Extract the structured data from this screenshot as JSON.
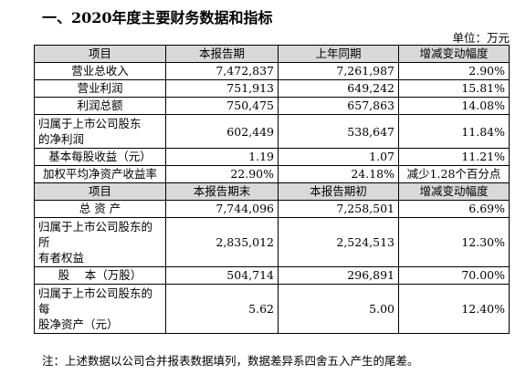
{
  "title": "一、2020年度主要财务数据和指标",
  "unit": "单位：万元",
  "table": {
    "col_widths": [
      144,
      123,
      132,
      121
    ],
    "header1": [
      "项目",
      "本报告期",
      "上年同期",
      "增减变动幅度"
    ],
    "rows1": [
      {
        "label": "营业总收入",
        "v1": "7,472,837",
        "v2": "7,261,987",
        "v3": "2.90%"
      },
      {
        "label": "营业利润",
        "v1": "751,913",
        "v2": "649,242",
        "v3": "15.81%"
      },
      {
        "label": "利润总额",
        "v1": "750,475",
        "v2": "657,863",
        "v3": "14.08%"
      },
      {
        "label": "归属于上市公司股东",
        "label2": "的净利润",
        "v1": "602,449",
        "v2": "538,647",
        "v3": "11.84%"
      },
      {
        "label": "基本每股收益（元）",
        "v1": "1.19",
        "v2": "1.07",
        "v3": "11.21%"
      },
      {
        "label": "加权平均净资产收益率",
        "v1": "22.90%",
        "v2": "24.18%",
        "v3": "减少1.28个百分点"
      }
    ],
    "header2": [
      "项目",
      "本报告期末",
      "本报告期初",
      "增减变动幅度"
    ],
    "rows2": [
      {
        "label": "总 资 产",
        "v1": "7,744,096",
        "v2": "7,258,501",
        "v3": "6.69%"
      },
      {
        "label": "归属于上市公司股东的所",
        "label2": "有者权益",
        "v1": "2,835,012",
        "v2": "2,524,513",
        "v3": "12.30%"
      },
      {
        "label": "股　 本（万股）",
        "v1": "504,714",
        "v2": "296,891",
        "v3": "70.00%"
      },
      {
        "label": "归属于上市公司股东的每",
        "label2": "股净资产（元）",
        "v1": "5.62",
        "v2": "5.00",
        "v3": "12.40%"
      }
    ]
  },
  "note": "注：上述数据以公司合并报表数据填列，数据差异系四舍五入产生的尾差。"
}
